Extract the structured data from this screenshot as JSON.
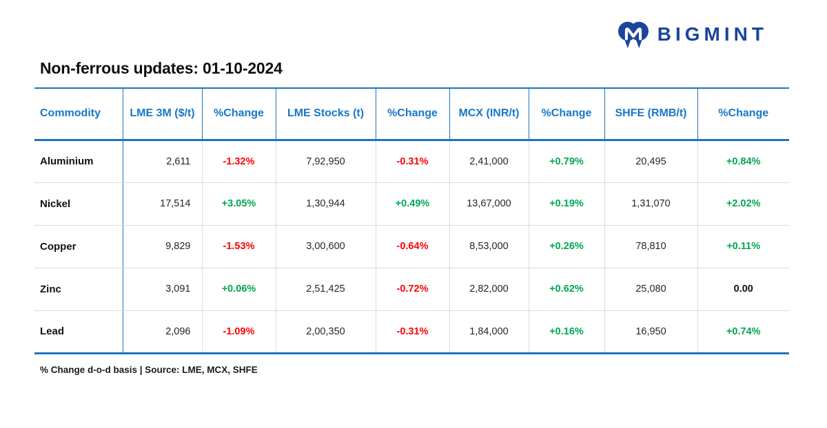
{
  "logo": {
    "text": "BIGMINT",
    "icon": "bigmint-m-icon"
  },
  "chart_data": {
    "type": "table",
    "title": "Non-ferrous updates: 01-10-2024",
    "columns": [
      "Commodity",
      "LME 3M ($/t)",
      "%Change",
      "LME Stocks (t)",
      "%Change",
      "MCX (INR/t)",
      "%Change",
      "SHFE (RMB/t)",
      "%Change"
    ],
    "rows": [
      [
        "Aluminium",
        "2,611",
        "-1.32%",
        "7,92,950",
        "-0.31%",
        "2,41,000",
        "+0.79%",
        "20,495",
        "+0.84%"
      ],
      [
        "Nickel",
        "17,514",
        "+3.05%",
        "1,30,944",
        "+0.49%",
        "13,67,000",
        "+0.19%",
        "1,31,070",
        "+2.02%"
      ],
      [
        "Copper",
        "9,829",
        "-1.53%",
        "3,00,600",
        "-0.64%",
        "8,53,000",
        "+0.26%",
        "78,810",
        "+0.11%"
      ],
      [
        "Zinc",
        "3,091",
        "+0.06%",
        "2,51,425",
        "-0.72%",
        "2,82,000",
        "+0.62%",
        "25,080",
        "0.00"
      ],
      [
        "Lead",
        "2,096",
        "-1.09%",
        "2,00,350",
        "-0.31%",
        "1,84,000",
        "+0.16%",
        "16,950",
        "+0.74%"
      ]
    ],
    "footnote": "% Change d-o-d basis | Source: LME, MCX, SHFE",
    "layout": {
      "value_columns_align": "center",
      "lme3m_column_align": "right",
      "grid": "blue header rules, gray row rules"
    }
  },
  "colors": {
    "header_blue": "#1777c8",
    "border_blue": "#1d73bd",
    "row_line_gray": "#d9d9d9",
    "positive_green": "#00a651",
    "negative_red": "#ff0000",
    "logo_navy": "#1c449c"
  }
}
